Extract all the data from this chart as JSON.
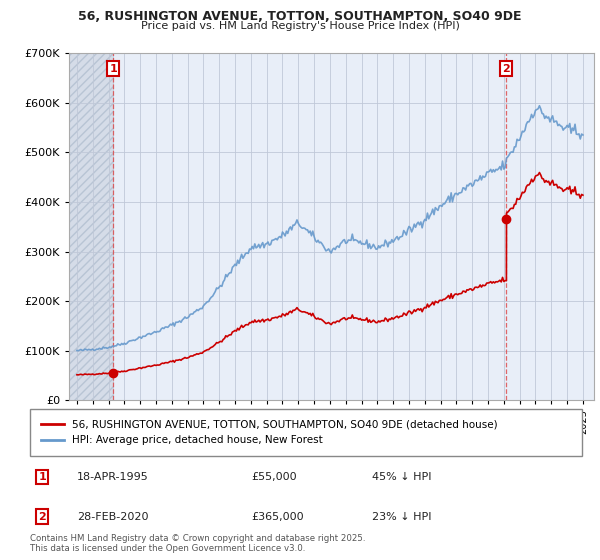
{
  "title_line1": "56, RUSHINGTON AVENUE, TOTTON, SOUTHAMPTON, SO40 9DE",
  "title_line2": "Price paid vs. HM Land Registry's House Price Index (HPI)",
  "ylim": [
    0,
    700000
  ],
  "yticks": [
    0,
    100000,
    200000,
    300000,
    400000,
    500000,
    600000,
    700000
  ],
  "ytick_labels": [
    "£0",
    "£100K",
    "£200K",
    "£300K",
    "£400K",
    "£500K",
    "£600K",
    "£700K"
  ],
  "background_color": "#ffffff",
  "plot_bg_color": "#e8eef8",
  "hatch_bg_color": "#d5dce8",
  "grid_color": "#c0c8d8",
  "sale1_x": 1995.29,
  "sale1_y": 55000,
  "sale1_label": "1",
  "sale1_date": "18-APR-1995",
  "sale1_price": "£55,000",
  "sale1_hpi": "45% ↓ HPI",
  "sale2_x": 2020.16,
  "sale2_y": 365000,
  "sale2_label": "2",
  "sale2_date": "28-FEB-2020",
  "sale2_price": "£365,000",
  "sale2_hpi": "23% ↓ HPI",
  "property_color": "#cc0000",
  "hpi_color": "#6699cc",
  "legend_property": "56, RUSHINGTON AVENUE, TOTTON, SOUTHAMPTON, SO40 9DE (detached house)",
  "legend_hpi": "HPI: Average price, detached house, New Forest",
  "copyright_text": "Contains HM Land Registry data © Crown copyright and database right 2025.\nThis data is licensed under the Open Government Licence v3.0.",
  "xmin": 1992.5,
  "xmax": 2025.7
}
